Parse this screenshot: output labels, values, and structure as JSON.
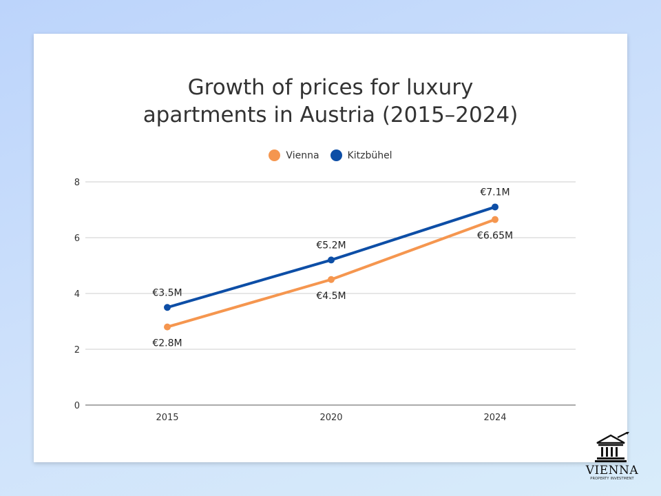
{
  "chart_data": {
    "type": "line",
    "title_lines": [
      "Growth of prices for luxury",
      "apartments in Austria (2015–2024)"
    ],
    "categories": [
      "2015",
      "2020",
      "2024"
    ],
    "x": [
      2015,
      2020,
      2024
    ],
    "series": [
      {
        "name": "Vienna",
        "color": "#f5964f",
        "values": [
          2.8,
          4.5,
          6.65
        ],
        "labels": [
          "€2.8M",
          "€4.5M",
          "€6.65M"
        ],
        "label_position": "below"
      },
      {
        "name": "Kitzbühel",
        "color": "#0d4ea6",
        "values": [
          3.5,
          5.2,
          7.1
        ],
        "labels": [
          "€3.5M",
          "€5.2M",
          "€7.1M"
        ],
        "label_position": "above"
      }
    ],
    "ylim": [
      0,
      8
    ],
    "yticks": [
      0,
      2,
      4,
      6,
      8
    ],
    "xlabel": "",
    "ylabel": "",
    "grid": true,
    "legend_position": "top-center"
  },
  "logo": {
    "icon": "bank-building-growth-icon",
    "name": "VIENNA",
    "subtitle": "PROPERTY INVESTMENT"
  }
}
